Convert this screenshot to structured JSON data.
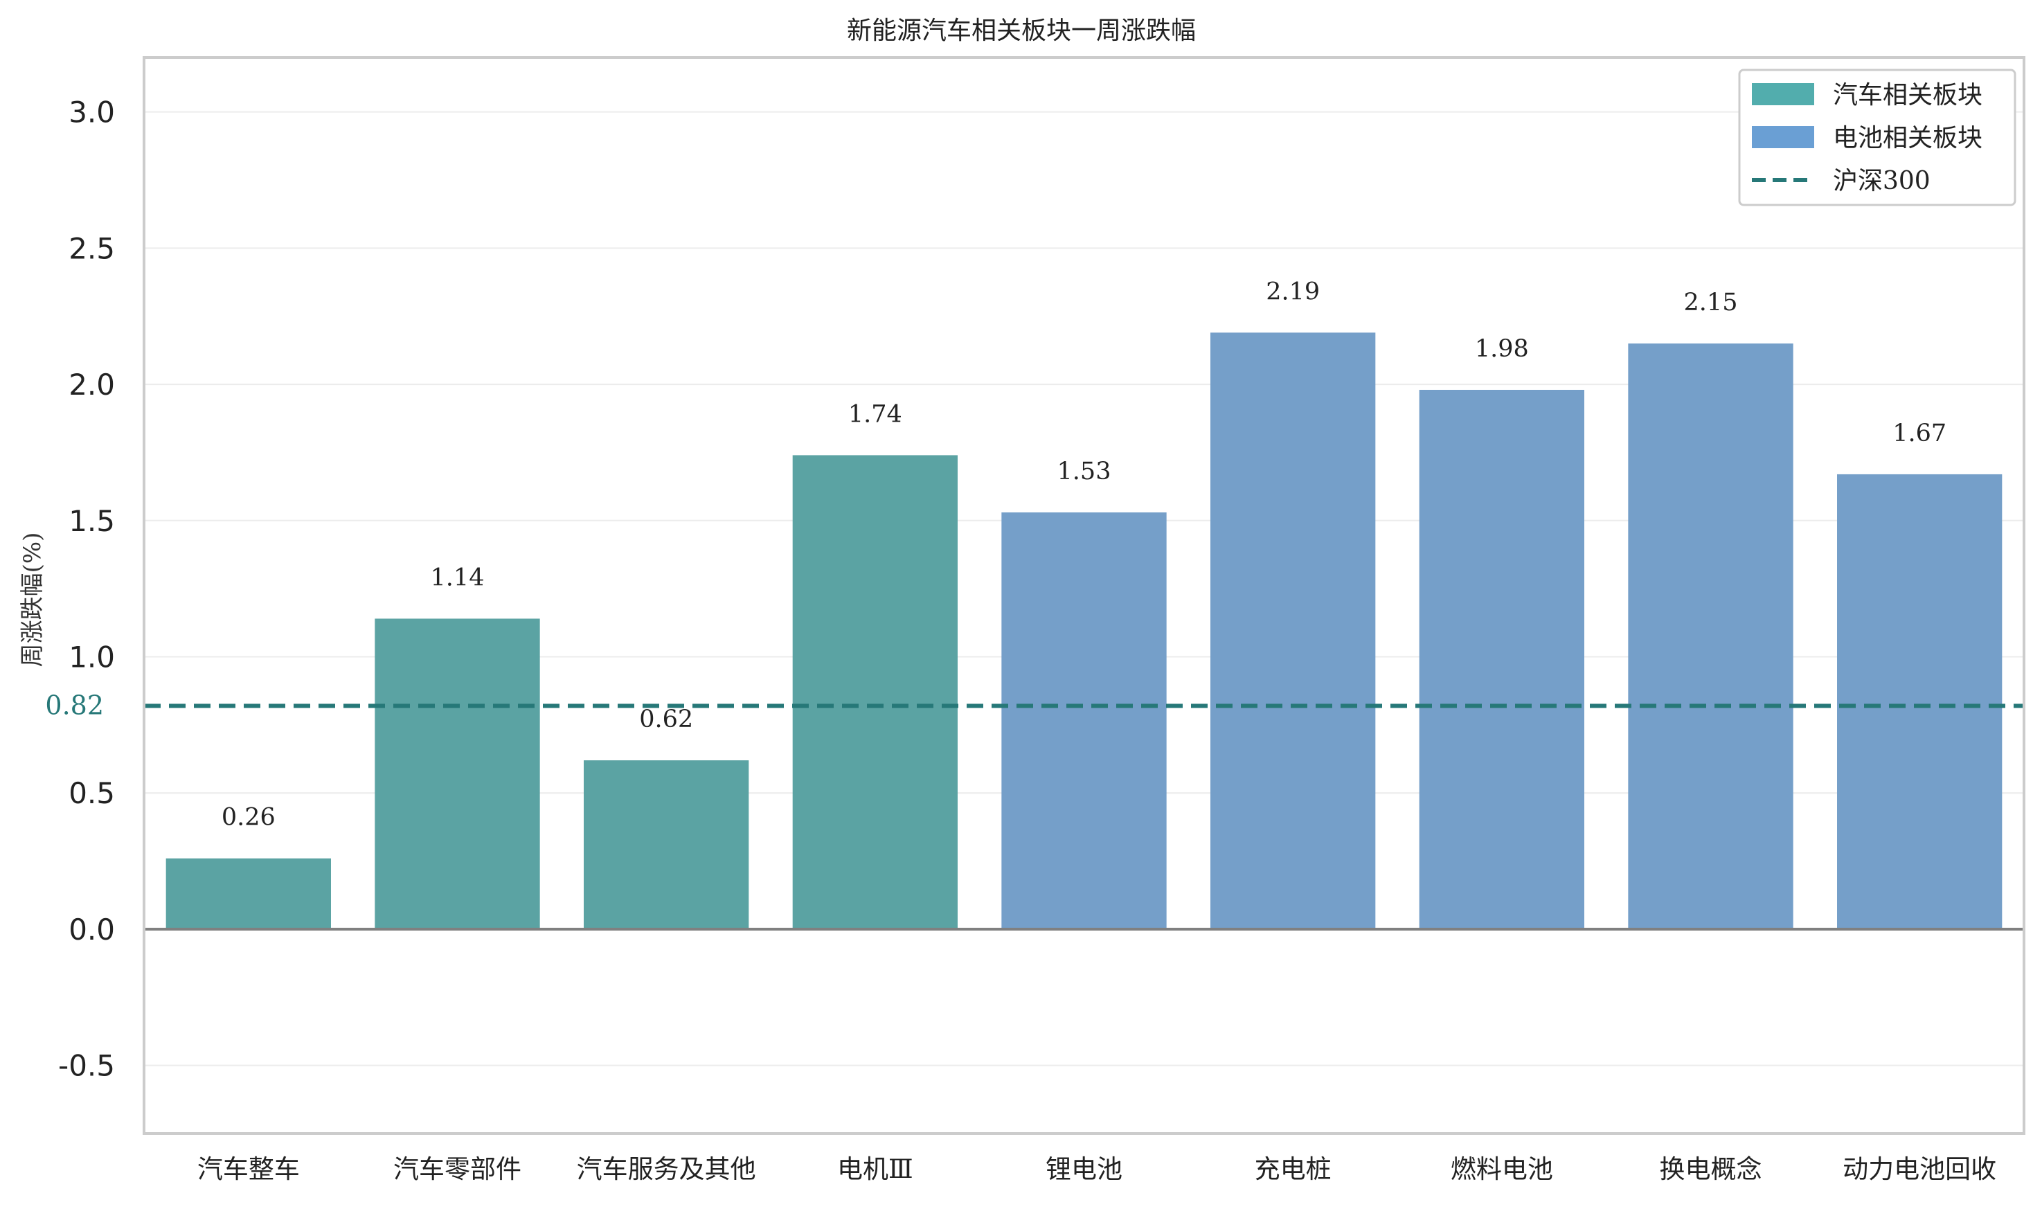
{
  "chart_data": {
    "type": "bar",
    "title": "新能源汽车相关板块一周涨跌幅",
    "xlabel": "",
    "ylabel": "周涨跌幅(%)",
    "ylim": [
      -0.75,
      3.2
    ],
    "yticks": [
      -0.5,
      0.0,
      0.5,
      1.0,
      1.5,
      2.0,
      2.5,
      3.0
    ],
    "ytick_labels": [
      "-0.5",
      "0.0",
      "0.5",
      "1.0",
      "1.5",
      "2.0",
      "2.5",
      "3.0"
    ],
    "grid": true,
    "legend_position": "top-right",
    "categories": [
      "汽车整车",
      "汽车零部件",
      "汽车服务及其他",
      "电机Ⅲ",
      "锂电池",
      "充电桩",
      "燃料电池",
      "换电概念",
      "动力电池回收"
    ],
    "values": [
      0.26,
      1.14,
      0.62,
      1.74,
      1.53,
      2.19,
      1.98,
      2.15,
      1.67
    ],
    "value_labels": [
      "0.26",
      "1.14",
      "0.62",
      "1.74",
      "1.53",
      "2.19",
      "1.98",
      "2.15",
      "1.67"
    ],
    "groups": [
      "auto",
      "auto",
      "auto",
      "auto",
      "battery",
      "battery",
      "battery",
      "battery",
      "battery"
    ],
    "series": [
      {
        "name": "汽车相关板块",
        "key": "auto",
        "color": "#5ba3a3",
        "legend_color": "#52adad"
      },
      {
        "name": "电池相关板块",
        "key": "battery",
        "color": "#759fc9",
        "legend_color": "#6a9fd4"
      }
    ],
    "reference_line": {
      "name": "沪深300",
      "value": 0.82,
      "label": "0.82",
      "color": "#267878",
      "style": "dashed"
    }
  }
}
